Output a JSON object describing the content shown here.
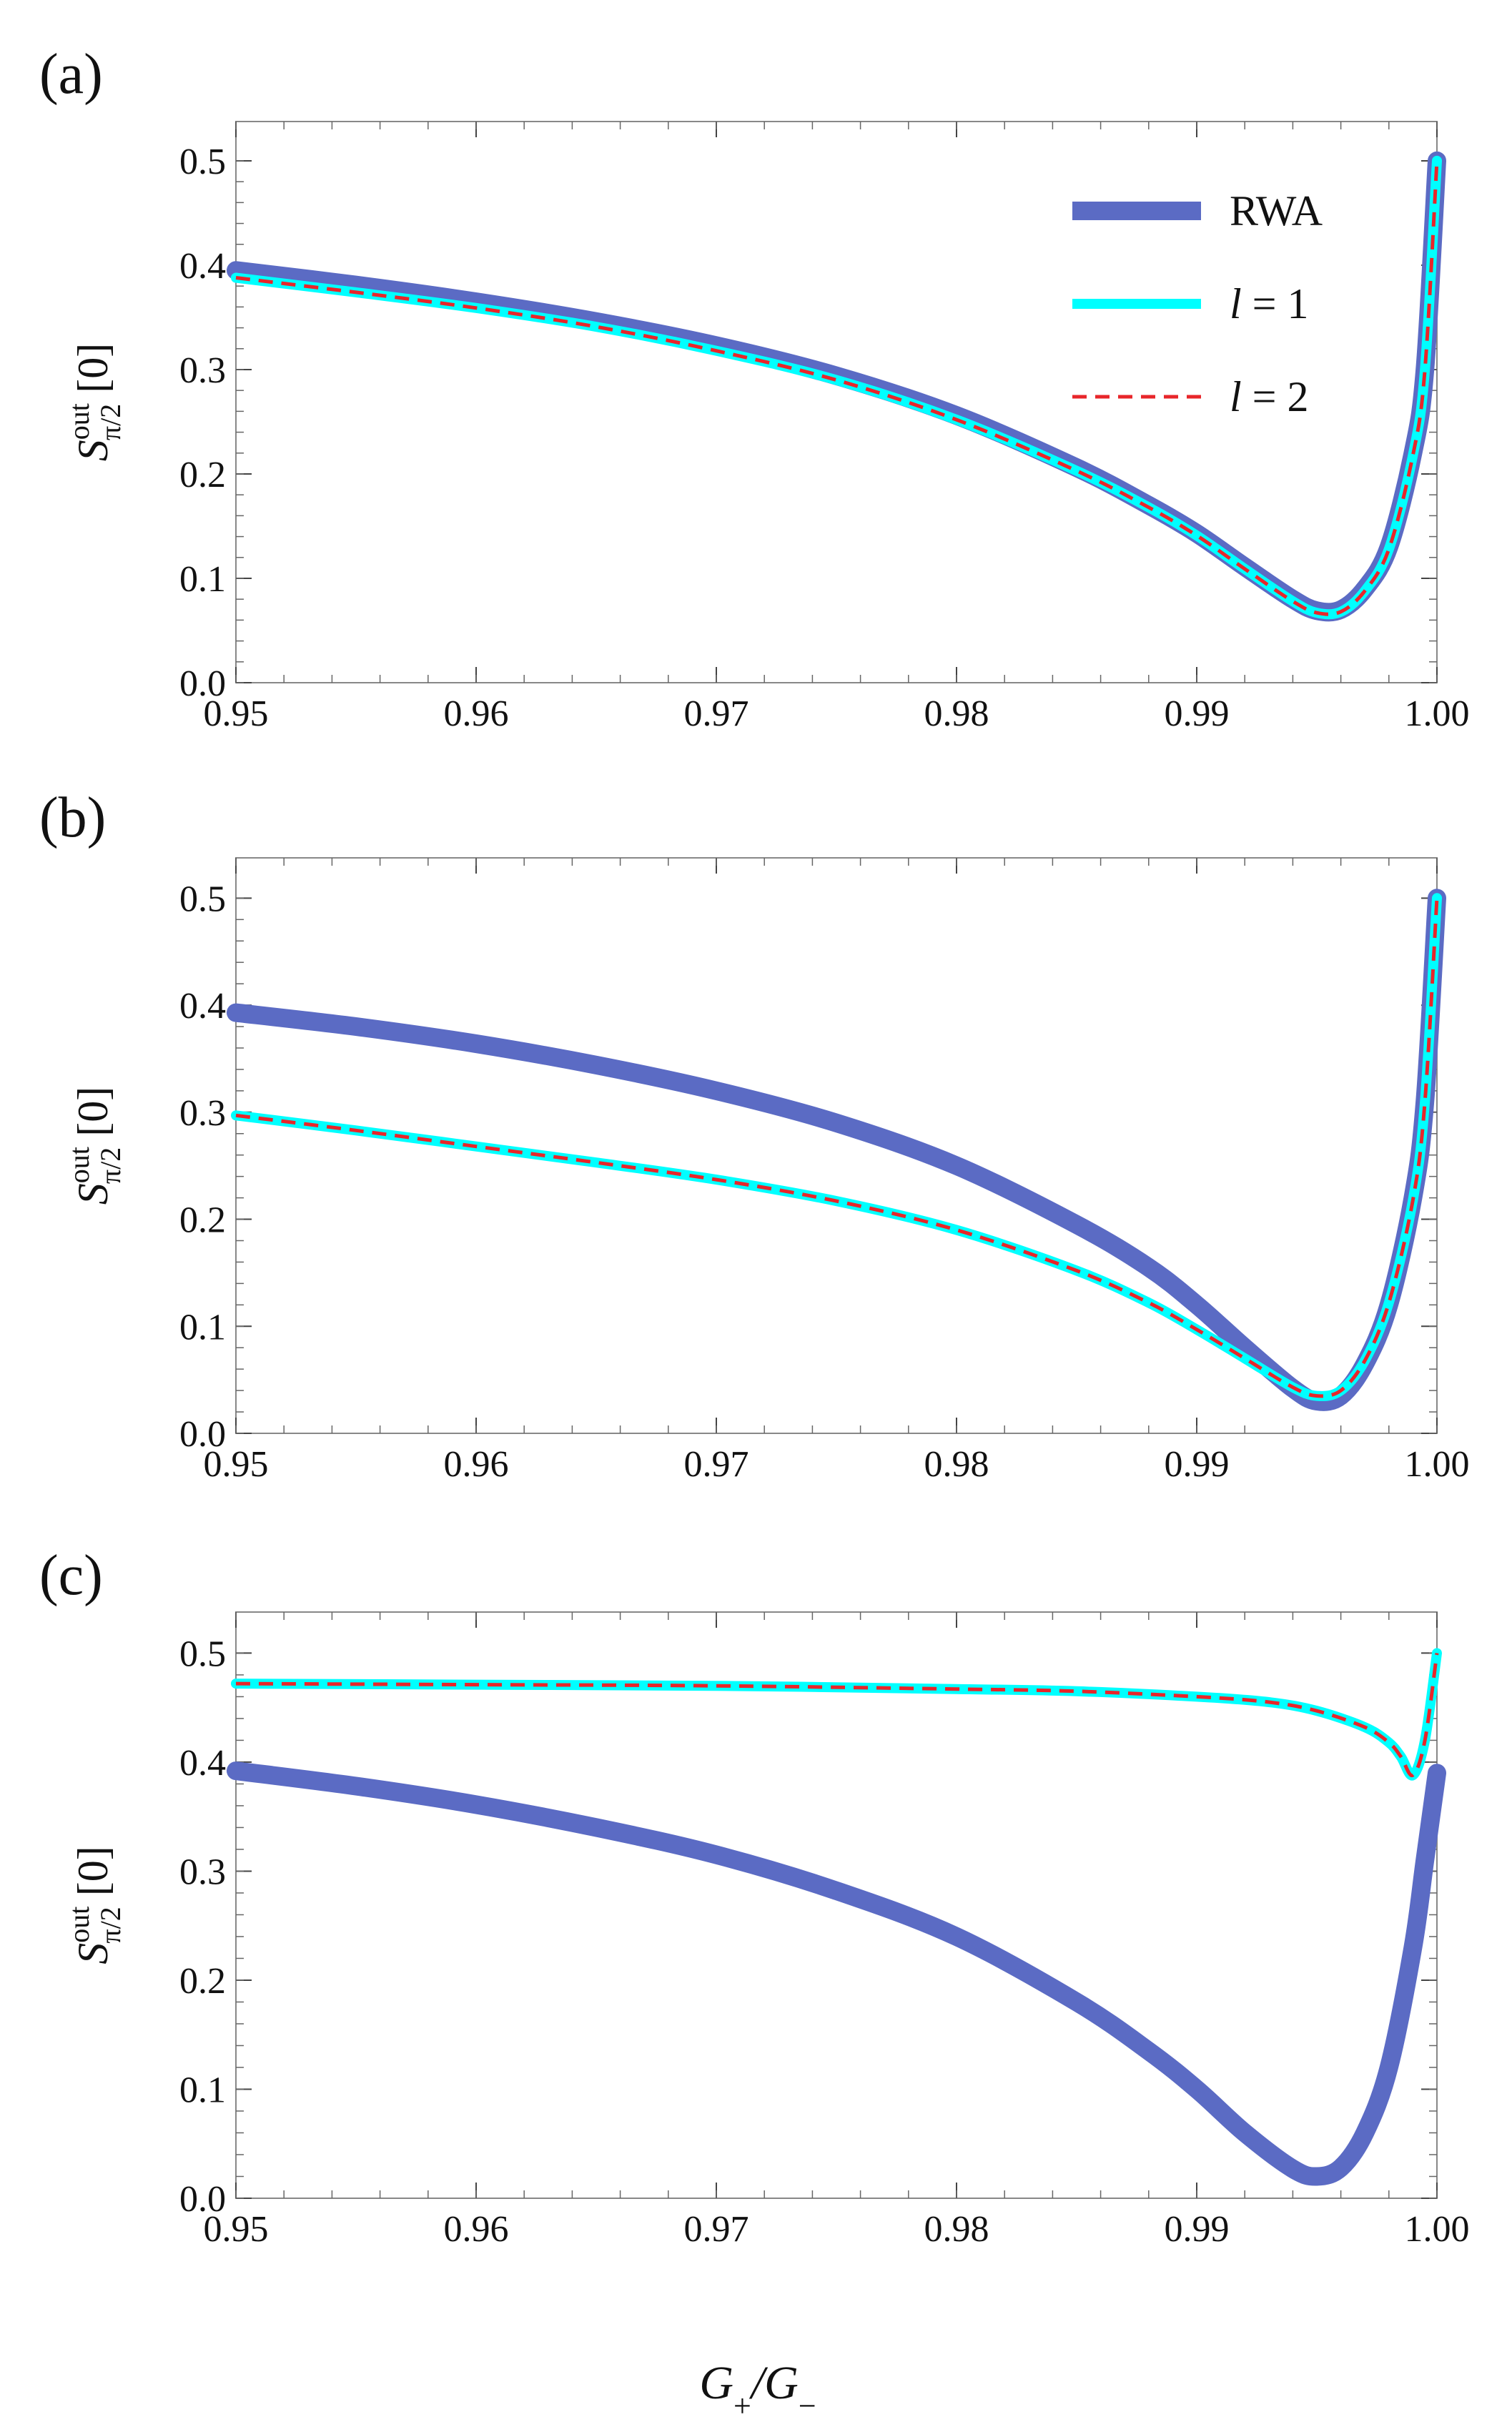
{
  "figure": {
    "xlabel": "G+/G−"
  },
  "chart_data": [
    {
      "type": "line",
      "panel": "(a)",
      "xlabel": "G+/G−",
      "ylabel": "S^out_{π/2}[0]",
      "xlim": [
        0.95,
        1.0
      ],
      "ylim": [
        0.0,
        0.5
      ],
      "x_ticks": [
        "0.95",
        "0.96",
        "0.97",
        "0.98",
        "0.99",
        "1.00"
      ],
      "y_ticks": [
        "0.0",
        "0.1",
        "0.2",
        "0.3",
        "0.4",
        "0.5"
      ],
      "grid": false,
      "legend_placement": "top-right",
      "series": [
        {
          "name": "RWA",
          "color": "#5b6bc4",
          "style": "thick-solid",
          "x": [
            0.95,
            0.955,
            0.96,
            0.965,
            0.97,
            0.975,
            0.98,
            0.985,
            0.988,
            0.99,
            0.992,
            0.994,
            0.995,
            0.996,
            0.997,
            0.998,
            0.999,
            0.9995,
            1.0
          ],
          "y": [
            0.395,
            0.381,
            0.365,
            0.346,
            0.323,
            0.294,
            0.256,
            0.206,
            0.17,
            0.143,
            0.111,
            0.08,
            0.069,
            0.07,
            0.09,
            0.13,
            0.22,
            0.3,
            0.5
          ]
        },
        {
          "name": "l = 1",
          "color": "#00ffff",
          "style": "solid",
          "x": [
            0.95,
            0.955,
            0.96,
            0.965,
            0.97,
            0.975,
            0.98,
            0.985,
            0.988,
            0.99,
            0.992,
            0.994,
            0.995,
            0.996,
            0.997,
            0.998,
            0.999,
            0.9995,
            1.0
          ],
          "y": [
            0.388,
            0.374,
            0.359,
            0.341,
            0.318,
            0.29,
            0.252,
            0.203,
            0.168,
            0.141,
            0.109,
            0.078,
            0.067,
            0.068,
            0.088,
            0.128,
            0.218,
            0.3,
            0.5
          ]
        },
        {
          "name": "l = 2",
          "color": "#e8262a",
          "style": "dashed",
          "x": [
            0.95,
            0.955,
            0.96,
            0.965,
            0.97,
            0.975,
            0.98,
            0.985,
            0.988,
            0.99,
            0.992,
            0.994,
            0.995,
            0.996,
            0.997,
            0.998,
            0.999,
            0.9995,
            1.0
          ],
          "y": [
            0.388,
            0.374,
            0.359,
            0.341,
            0.318,
            0.29,
            0.252,
            0.203,
            0.168,
            0.141,
            0.109,
            0.078,
            0.067,
            0.068,
            0.088,
            0.128,
            0.218,
            0.3,
            0.5
          ]
        }
      ],
      "legend": [
        "RWA",
        "l = 1",
        "l = 2"
      ]
    },
    {
      "type": "line",
      "panel": "(b)",
      "xlabel": "G+/G−",
      "ylabel": "S^out_{π/2}[0]",
      "xlim": [
        0.95,
        1.0
      ],
      "ylim": [
        0.0,
        0.5
      ],
      "x_ticks": [
        "0.95",
        "0.96",
        "0.97",
        "0.98",
        "0.99",
        "1.00"
      ],
      "y_ticks": [
        "0.0",
        "0.1",
        "0.2",
        "0.3",
        "0.4",
        "0.5"
      ],
      "grid": false,
      "series": [
        {
          "name": "RWA",
          "color": "#5b6bc4",
          "style": "thick-solid",
          "x": [
            0.95,
            0.955,
            0.96,
            0.965,
            0.97,
            0.975,
            0.98,
            0.985,
            0.988,
            0.99,
            0.992,
            0.994,
            0.995,
            0.996,
            0.997,
            0.998,
            0.999,
            0.9995,
            1.0
          ],
          "y": [
            0.393,
            0.38,
            0.364,
            0.344,
            0.32,
            0.29,
            0.25,
            0.195,
            0.155,
            0.12,
            0.08,
            0.042,
            0.03,
            0.035,
            0.065,
            0.12,
            0.22,
            0.31,
            0.5
          ]
        },
        {
          "name": "l = 1",
          "color": "#00ffff",
          "style": "solid",
          "x": [
            0.95,
            0.955,
            0.96,
            0.965,
            0.97,
            0.975,
            0.98,
            0.985,
            0.988,
            0.99,
            0.992,
            0.994,
            0.995,
            0.996,
            0.997,
            0.998,
            0.999,
            0.9995,
            1.0
          ],
          "y": [
            0.297,
            0.283,
            0.268,
            0.253,
            0.237,
            0.217,
            0.19,
            0.152,
            0.122,
            0.097,
            0.07,
            0.043,
            0.035,
            0.04,
            0.068,
            0.122,
            0.218,
            0.31,
            0.5
          ]
        },
        {
          "name": "l = 2",
          "color": "#e8262a",
          "style": "dashed",
          "x": [
            0.95,
            0.955,
            0.96,
            0.965,
            0.97,
            0.975,
            0.98,
            0.985,
            0.988,
            0.99,
            0.992,
            0.994,
            0.995,
            0.996,
            0.997,
            0.998,
            0.999,
            0.9995,
            1.0
          ],
          "y": [
            0.297,
            0.283,
            0.268,
            0.253,
            0.237,
            0.217,
            0.19,
            0.152,
            0.122,
            0.097,
            0.07,
            0.043,
            0.035,
            0.04,
            0.068,
            0.122,
            0.218,
            0.31,
            0.5
          ]
        }
      ]
    },
    {
      "type": "line",
      "panel": "(c)",
      "xlabel": "G+/G−",
      "ylabel": "S^out_{π/2}[0]",
      "xlim": [
        0.95,
        1.0
      ],
      "ylim": [
        0.0,
        0.5
      ],
      "x_ticks": [
        "0.95",
        "0.96",
        "0.97",
        "0.98",
        "0.99",
        "1.00"
      ],
      "y_ticks": [
        "0.0",
        "0.1",
        "0.2",
        "0.3",
        "0.4",
        "0.5"
      ],
      "grid": false,
      "series": [
        {
          "name": "RWA",
          "color": "#5b6bc4",
          "style": "thick-solid",
          "x": [
            0.95,
            0.955,
            0.96,
            0.965,
            0.97,
            0.975,
            0.98,
            0.985,
            0.988,
            0.99,
            0.992,
            0.994,
            0.995,
            0.996,
            0.997,
            0.998,
            0.999,
            0.9995,
            1.0
          ],
          "y": [
            0.392,
            0.378,
            0.361,
            0.34,
            0.315,
            0.282,
            0.24,
            0.18,
            0.135,
            0.1,
            0.06,
            0.027,
            0.02,
            0.028,
            0.06,
            0.12,
            0.23,
            0.31,
            0.39
          ]
        },
        {
          "name": "l = 1",
          "color": "#00ffff",
          "style": "solid",
          "x": [
            0.95,
            0.96,
            0.97,
            0.98,
            0.985,
            0.99,
            0.993,
            0.995,
            0.997,
            0.998,
            0.9985,
            0.999,
            0.9995,
            1.0
          ],
          "y": [
            0.472,
            0.471,
            0.47,
            0.467,
            0.465,
            0.46,
            0.455,
            0.447,
            0.432,
            0.418,
            0.405,
            0.388,
            0.42,
            0.5
          ]
        },
        {
          "name": "l = 2",
          "color": "#e8262a",
          "style": "dashed",
          "x": [
            0.95,
            0.96,
            0.97,
            0.98,
            0.985,
            0.99,
            0.993,
            0.995,
            0.997,
            0.998,
            0.9985,
            0.999,
            0.9995,
            1.0
          ],
          "y": [
            0.472,
            0.471,
            0.47,
            0.467,
            0.465,
            0.46,
            0.455,
            0.447,
            0.432,
            0.418,
            0.405,
            0.388,
            0.42,
            0.5
          ]
        }
      ]
    }
  ]
}
